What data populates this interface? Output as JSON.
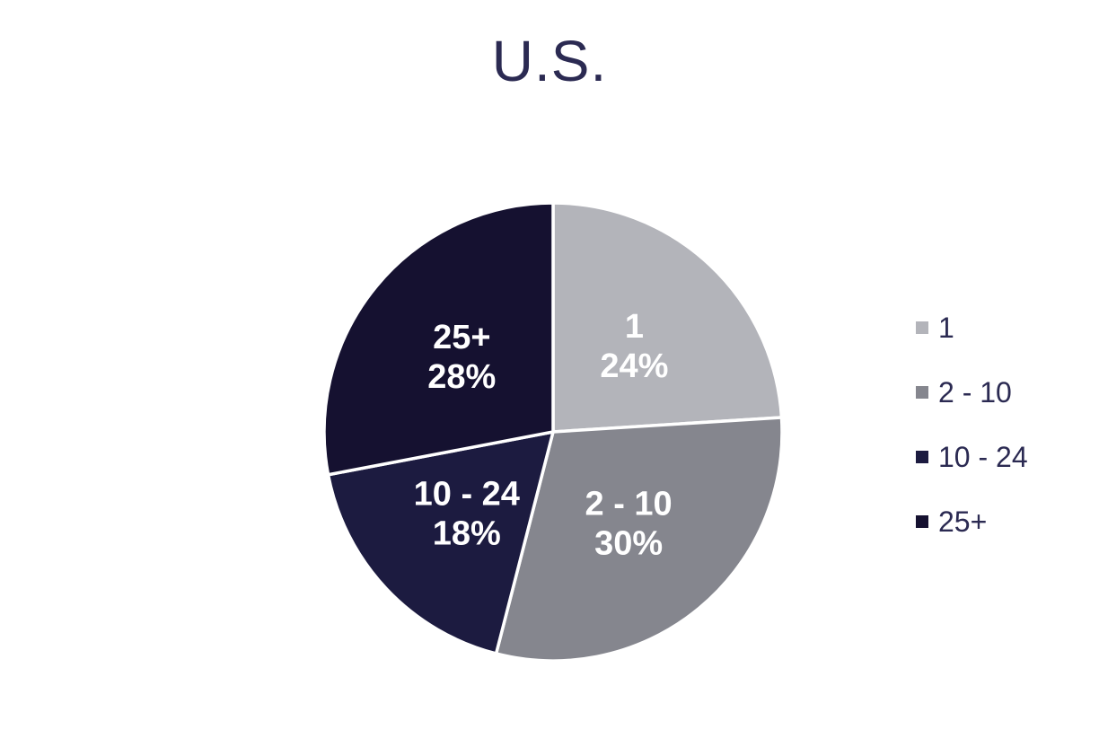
{
  "chart_data": {
    "type": "pie",
    "title": "U.S.",
    "categories": [
      "1",
      "2 - 10",
      "10 - 24",
      "25+"
    ],
    "values": [
      24,
      30,
      18,
      28
    ],
    "percent_labels": [
      "24%",
      "30%",
      "18%",
      "28%"
    ],
    "colors": [
      "#b3b4ba",
      "#85868e",
      "#1c1b40",
      "#151130"
    ],
    "label_text_color": "#ffffff",
    "slice_border_color": "#ffffff",
    "start_angle_deg": 0,
    "clockwise": true,
    "legend_position": "right",
    "legend_entries": [
      "1",
      "2 - 10",
      "10 - 24",
      "25+"
    ],
    "title_color": "#2b2a52",
    "legend_text_color": "#2b2a52",
    "background_color": "#ffffff"
  }
}
